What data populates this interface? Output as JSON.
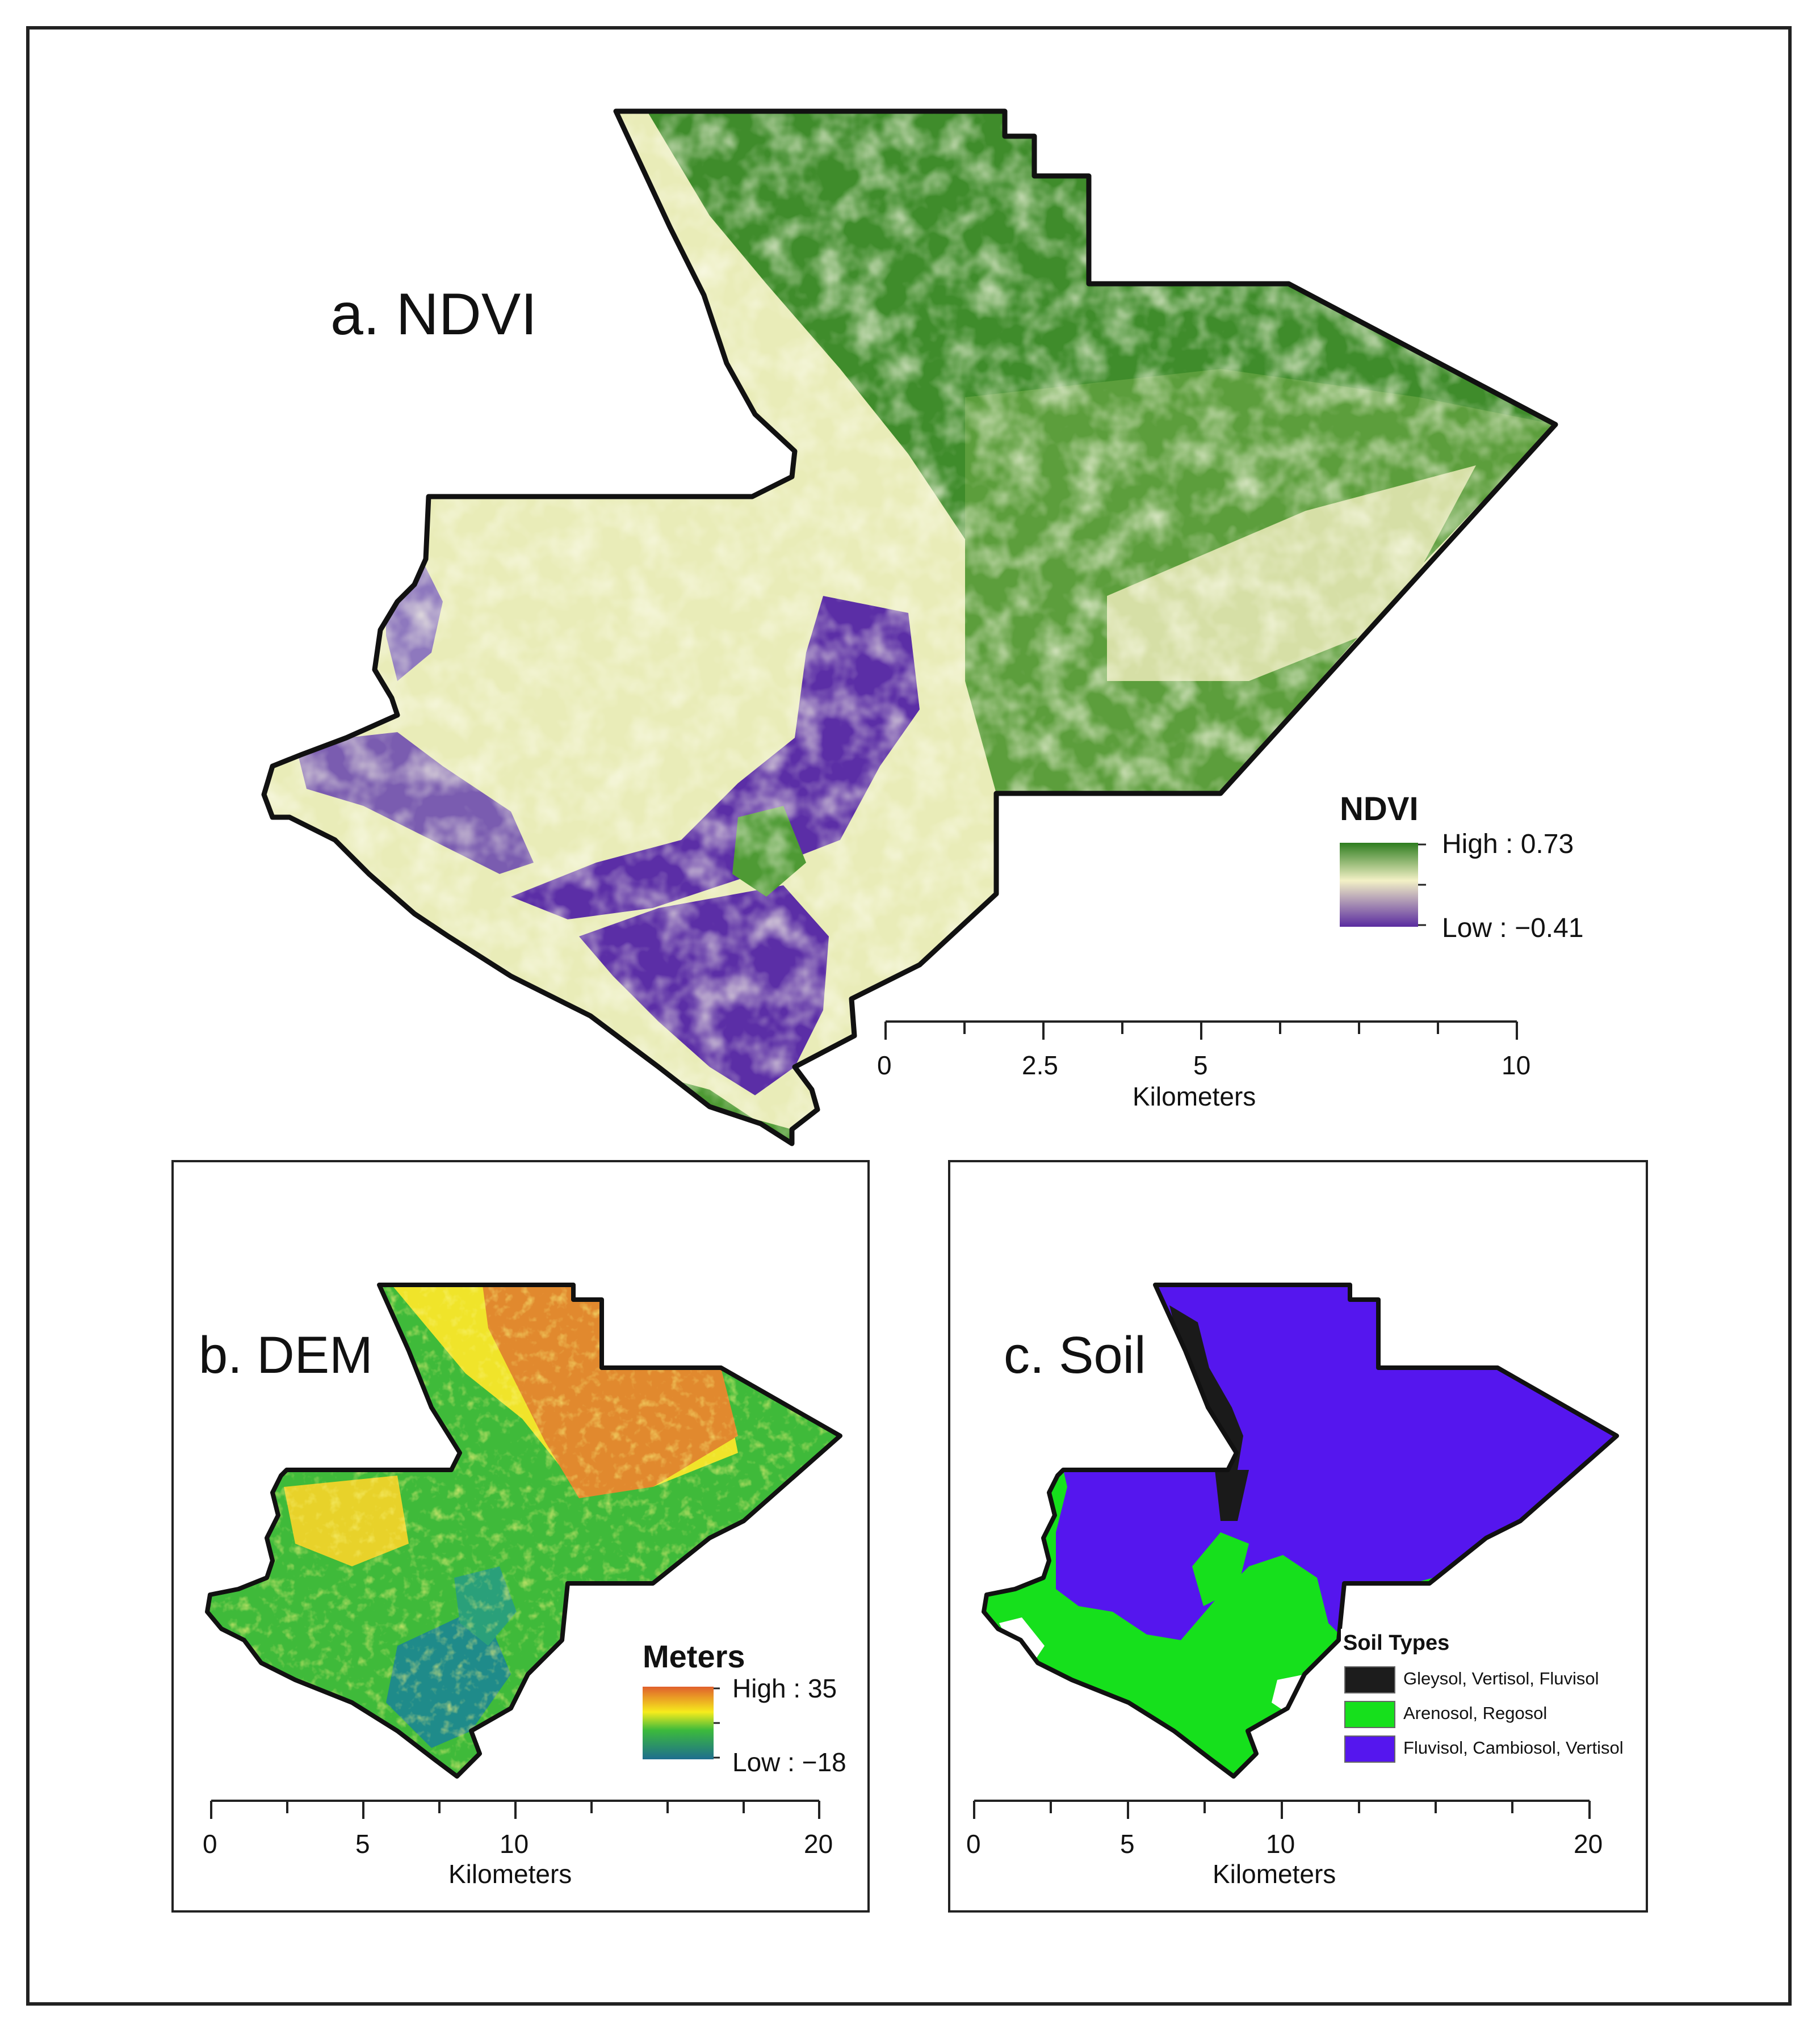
{
  "panels": {
    "ndvi": {
      "title": "a. NDVI",
      "legend": {
        "title": "NDVI",
        "high": "High : 0.73",
        "low": "Low : −0.41",
        "colors": [
          "#2e7d1f",
          "#f3f1c6",
          "#5a2ba0"
        ]
      },
      "scale": {
        "ticks": [
          "0",
          "2.5",
          "5",
          "10"
        ],
        "unit": "Kilometers"
      }
    },
    "dem": {
      "title": "b. DEM",
      "legend": {
        "title": "Meters",
        "high": "High : 35",
        "low": "Low : −18",
        "colors": [
          "#e0602c",
          "#f6ec1c",
          "#3cba3c",
          "#1e6e8e"
        ]
      },
      "scale": {
        "ticks": [
          "0",
          "5",
          "10",
          "20"
        ],
        "unit": "Kilometers"
      }
    },
    "soil": {
      "title": "c. Soil",
      "legend": {
        "title": "Soil Types",
        "items": [
          {
            "label": "Gleysol, Vertisol, Fluvisol",
            "color": "#1c1c1c"
          },
          {
            "label": "Arenosol, Regosol",
            "color": "#16e01c"
          },
          {
            "label": "Fluvisol, Cambiosol, Vertisol",
            "color": "#5516ee"
          }
        ]
      },
      "scale": {
        "ticks": [
          "0",
          "5",
          "10",
          "20"
        ],
        "unit": "Kilometers"
      }
    }
  }
}
